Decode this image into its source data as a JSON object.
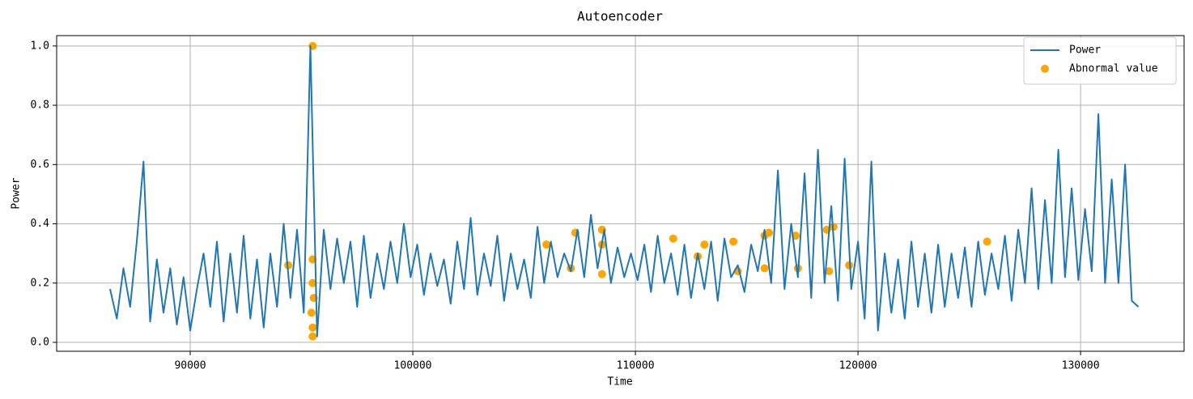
{
  "chart_data": {
    "type": "line",
    "title": "Autoencoder",
    "xlabel": "Time",
    "ylabel": "Power",
    "xlim": [
      84000,
      134650
    ],
    "ylim": [
      -0.03,
      1.035
    ],
    "xticks": [
      90000,
      100000,
      110000,
      120000,
      130000
    ],
    "yticks": [
      {
        "value": 0,
        "label": "0.0"
      },
      0.2,
      0.4,
      0.6,
      0.8,
      {
        "value": 1,
        "label": "1.0"
      }
    ],
    "grid": true,
    "legend": "upper right",
    "series": [
      {
        "name": "Power",
        "type": "line",
        "color": "#1f77b4",
        "x": [
          86400,
          86700,
          87000,
          87300,
          87600,
          87900,
          88200,
          88500,
          88800,
          89100,
          89400,
          89700,
          90000,
          90300,
          90600,
          90900,
          91200,
          91500,
          91800,
          92100,
          92400,
          92700,
          93000,
          93300,
          93600,
          93900,
          94200,
          94500,
          94800,
          95100,
          95400,
          95700,
          96000,
          96300,
          96600,
          96900,
          97200,
          97500,
          97800,
          98100,
          98400,
          98700,
          99000,
          99300,
          99600,
          99900,
          100200,
          100500,
          100800,
          101100,
          101400,
          101700,
          102000,
          102300,
          102600,
          102900,
          103200,
          103500,
          103800,
          104100,
          104400,
          104700,
          105000,
          105300,
          105600,
          105900,
          106200,
          106500,
          106800,
          107100,
          107400,
          107700,
          108000,
          108300,
          108600,
          108900,
          109200,
          109500,
          109800,
          110100,
          110400,
          110700,
          111000,
          111300,
          111600,
          111900,
          112200,
          112500,
          112800,
          113100,
          113400,
          113700,
          114000,
          114300,
          114600,
          114900,
          115200,
          115500,
          115800,
          116100,
          116400,
          116700,
          117000,
          117300,
          117600,
          117900,
          118200,
          118500,
          118800,
          119100,
          119400,
          119700,
          120000,
          120300,
          120600,
          120900,
          121200,
          121500,
          121800,
          122100,
          122400,
          122700,
          123000,
          123300,
          123600,
          123900,
          124200,
          124500,
          124800,
          125100,
          125400,
          125700,
          126000,
          126300,
          126600,
          126900,
          127200,
          127500,
          127800,
          128100,
          128400,
          128700,
          129000,
          129300,
          129600,
          129900,
          130200,
          130500,
          130800,
          131100,
          131400,
          131700,
          132000,
          132300,
          132600
        ],
        "values": [
          0.18,
          0.08,
          0.25,
          0.12,
          0.34,
          0.61,
          0.07,
          0.28,
          0.1,
          0.25,
          0.06,
          0.22,
          0.04,
          0.18,
          0.3,
          0.12,
          0.34,
          0.07,
          0.3,
          0.1,
          0.36,
          0.08,
          0.28,
          0.05,
          0.3,
          0.12,
          0.4,
          0.15,
          0.38,
          0.1,
          1.0,
          0.02,
          0.38,
          0.18,
          0.35,
          0.2,
          0.34,
          0.12,
          0.36,
          0.15,
          0.3,
          0.18,
          0.34,
          0.2,
          0.4,
          0.22,
          0.33,
          0.16,
          0.3,
          0.19,
          0.28,
          0.13,
          0.34,
          0.18,
          0.42,
          0.16,
          0.3,
          0.19,
          0.36,
          0.14,
          0.3,
          0.18,
          0.28,
          0.15,
          0.39,
          0.2,
          0.34,
          0.22,
          0.3,
          0.24,
          0.38,
          0.22,
          0.43,
          0.25,
          0.38,
          0.2,
          0.32,
          0.22,
          0.3,
          0.21,
          0.33,
          0.17,
          0.36,
          0.2,
          0.3,
          0.16,
          0.33,
          0.15,
          0.3,
          0.18,
          0.34,
          0.14,
          0.35,
          0.22,
          0.26,
          0.17,
          0.33,
          0.24,
          0.38,
          0.2,
          0.58,
          0.18,
          0.4,
          0.22,
          0.57,
          0.15,
          0.65,
          0.2,
          0.46,
          0.14,
          0.62,
          0.18,
          0.34,
          0.08,
          0.61,
          0.04,
          0.3,
          0.1,
          0.28,
          0.08,
          0.34,
          0.12,
          0.3,
          0.1,
          0.33,
          0.12,
          0.3,
          0.15,
          0.32,
          0.12,
          0.34,
          0.16,
          0.3,
          0.18,
          0.36,
          0.14,
          0.38,
          0.2,
          0.52,
          0.18,
          0.48,
          0.2,
          0.65,
          0.22,
          0.52,
          0.21,
          0.45,
          0.24,
          0.77,
          0.2,
          0.55,
          0.2,
          0.6,
          0.14,
          0.12
        ]
      },
      {
        "name": "Abnormal value",
        "type": "scatter",
        "color": "#ffa500",
        "x": [
          95500,
          95500,
          95500,
          95450,
          95550,
          95500,
          95500,
          94400,
          106000,
          107300,
          107100,
          108500,
          108500,
          108500,
          111700,
          112800,
          113100,
          114400,
          114600,
          115800,
          116000,
          115800,
          117200,
          117300,
          118600,
          118700,
          118900,
          119600,
          125800
        ],
        "values": [
          1.0,
          0.02,
          0.05,
          0.1,
          0.15,
          0.2,
          0.28,
          0.26,
          0.33,
          0.37,
          0.25,
          0.38,
          0.33,
          0.23,
          0.35,
          0.29,
          0.33,
          0.34,
          0.24,
          0.36,
          0.37,
          0.25,
          0.36,
          0.25,
          0.38,
          0.24,
          0.39,
          0.26,
          0.34
        ]
      }
    ]
  }
}
